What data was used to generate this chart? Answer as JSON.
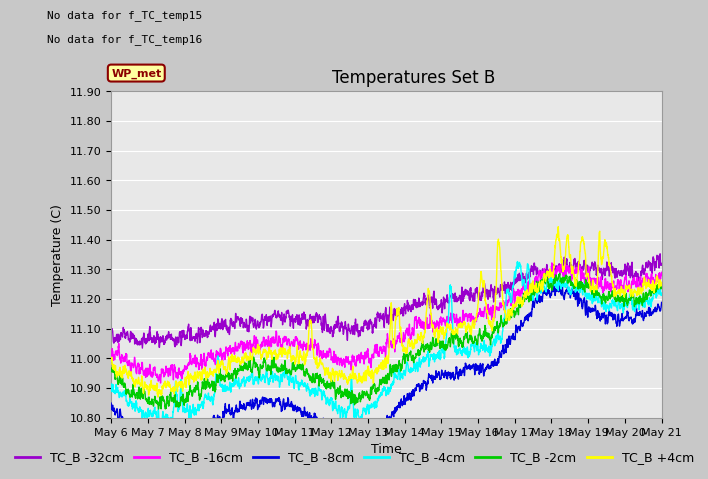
{
  "title": "Temperatures Set B",
  "xlabel": "Time",
  "ylabel": "Temperature (C)",
  "ylim": [
    10.8,
    11.9
  ],
  "yticks": [
    10.8,
    10.9,
    11.0,
    11.1,
    11.2,
    11.3,
    11.4,
    11.5,
    11.6,
    11.7,
    11.8,
    11.9
  ],
  "xtick_labels": [
    "May 6",
    "May 7",
    "May 8",
    "May 9",
    "May 10",
    "May 11",
    "May 12",
    "May 13",
    "May 14",
    "May 15",
    "May 16",
    "May 17",
    "May 18",
    "May 19",
    "May 20",
    "May 21"
  ],
  "series": [
    {
      "label": "TC_B -32cm",
      "color": "#9900cc",
      "lw": 1.0
    },
    {
      "label": "TC_B -16cm",
      "color": "#ff00ff",
      "lw": 1.0
    },
    {
      "label": "TC_B -8cm",
      "color": "#0000dd",
      "lw": 1.0
    },
    {
      "label": "TC_B -4cm",
      "color": "#00ffff",
      "lw": 1.0
    },
    {
      "label": "TC_B -2cm",
      "color": "#00cc00",
      "lw": 1.0
    },
    {
      "label": "TC_B +4cm",
      "color": "#ffff00",
      "lw": 1.0
    }
  ],
  "annotations": [
    "No data for f_TC_temp15",
    "No data for f_TC_temp16"
  ],
  "wp_met_label": "WP_met",
  "wp_met_color": "#8b0000",
  "wp_met_bg": "#ffffa0",
  "plot_bg": "#e8e8e8",
  "grid_color": "#ffffff",
  "title_fontsize": 12,
  "label_fontsize": 9,
  "tick_fontsize": 8,
  "legend_fontsize": 9,
  "annotation_fontsize": 8
}
